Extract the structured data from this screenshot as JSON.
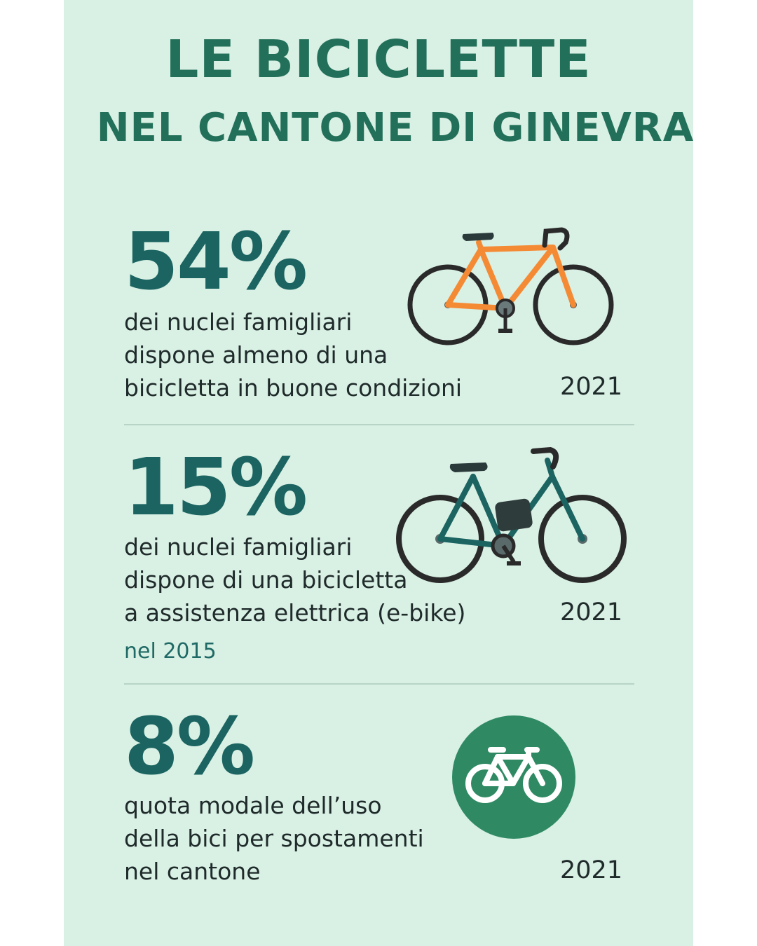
{
  "header": {
    "title_line1": "LE BICICLETTE",
    "title_line2": "NEL CANTONE DI GINEVRA"
  },
  "stats": [
    {
      "value": "54%",
      "lines": [
        "dei nuclei famigliari",
        "dispone almeno di una",
        "bicicletta in buone condizioni"
      ],
      "year": "2021",
      "icon": "orange-road-bike-icon"
    },
    {
      "value": "15%",
      "lines": [
        "dei nuclei famigliari",
        "dispone di una bicicletta",
        "a assistenza elettrica (e-bike)"
      ],
      "year": "2021",
      "note": "nel 2015",
      "icon": "teal-e-bike-icon"
    },
    {
      "value": "8%",
      "lines": [
        "quota modale dell’uso",
        "della bici per spostamenti",
        "nel cantone"
      ],
      "year": "2021",
      "icon": "green-bicycle-sign-icon"
    }
  ],
  "colors": {
    "background": "#d9f0e4",
    "title": "#23705a",
    "stat": "#1b6461",
    "text": "#1f2a2a",
    "orange_bike": "#f58a34",
    "teal_bike": "#1b6461",
    "green_circle": "#2f8a63"
  }
}
